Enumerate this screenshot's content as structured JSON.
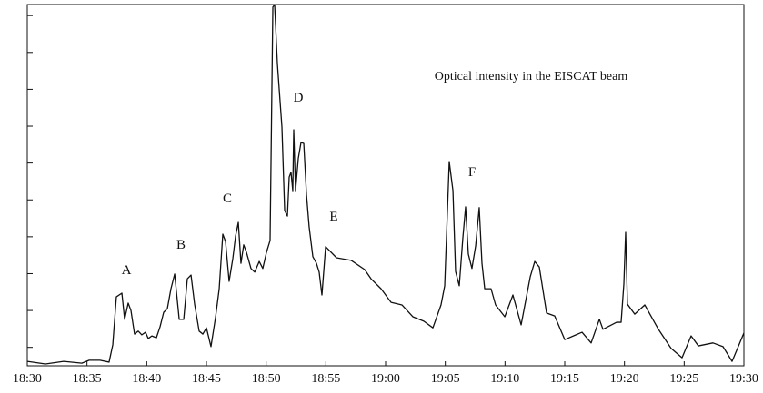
{
  "chart_data": {
    "type": "line",
    "title": "Optical intensity in the EISCAT beam",
    "annotations": [
      "A",
      "B",
      "C",
      "D",
      "E",
      "F"
    ],
    "xlim": [
      0,
      60
    ],
    "xticks": [
      {
        "value": 0,
        "label": "18:30"
      },
      {
        "value": 5,
        "label": "18:35"
      },
      {
        "value": 10,
        "label": "18:40"
      },
      {
        "value": 15,
        "label": "18:45"
      },
      {
        "value": 20,
        "label": "18:50"
      },
      {
        "value": 25,
        "label": "18:55"
      },
      {
        "value": 30,
        "label": "19:00"
      },
      {
        "value": 35,
        "label": "19:05"
      },
      {
        "value": 40,
        "label": "19:10"
      },
      {
        "value": 45,
        "label": "19:15"
      },
      {
        "value": 50,
        "label": "19:20"
      },
      {
        "value": 55,
        "label": "19:25"
      },
      {
        "value": 60,
        "label": "19:30"
      }
    ],
    "ylim": [
      0,
      9.8
    ],
    "yticks": [
      0.5,
      1.5,
      2.5,
      3.5,
      4.5,
      5.5,
      6.5,
      7.5,
      8.5,
      9.5
    ],
    "series": [
      {
        "color": "#111111",
        "x": [
          0,
          1.52,
          3.05,
          4.57,
          5.18,
          6.09,
          6.85,
          7.16,
          7.46,
          7.92,
          8.15,
          8.45,
          8.68,
          8.98,
          9.29,
          9.59,
          9.9,
          10.13,
          10.43,
          10.81,
          11.12,
          11.42,
          11.73,
          12.03,
          12.34,
          12.72,
          13.1,
          13.4,
          13.71,
          14.01,
          14.39,
          14.7,
          15,
          15.38,
          15.76,
          16.07,
          16.37,
          16.6,
          16.9,
          17.21,
          17.44,
          17.67,
          17.89,
          18.12,
          18.35,
          18.73,
          19.04,
          19.42,
          19.72,
          20.03,
          20.33,
          20.56,
          20.71,
          20.94,
          21.32,
          21.55,
          21.78,
          21.93,
          22.08,
          22.23,
          22.31,
          22.46,
          22.69,
          22.92,
          23.15,
          23.38,
          23.6,
          23.91,
          24.21,
          24.44,
          24.67,
          24.98,
          25.89,
          27.11,
          28.25,
          28.78,
          29.62,
          30.46,
          31.37,
          32.28,
          33.2,
          33.96,
          34.64,
          34.95,
          35.18,
          35.33,
          35.64,
          35.86,
          36.17,
          36.47,
          36.7,
          36.93,
          37.23,
          37.54,
          37.84,
          38.07,
          38.3,
          38.83,
          39.21,
          39.98,
          40.66,
          41.35,
          42.11,
          42.49,
          42.87,
          43.48,
          44.16,
          45,
          46.45,
          47.21,
          47.9,
          48.2,
          49.34,
          49.72,
          49.95,
          50.1,
          50.25,
          50.86,
          51.7,
          52.84,
          53.91,
          54.82,
          55.58,
          56.19,
          57.41,
          58.25,
          59.01,
          60
        ],
        "values": [
          0.12,
          0.05,
          0.12,
          0.07,
          0.15,
          0.15,
          0.1,
          0.57,
          1.87,
          1.97,
          1.26,
          1.7,
          1.5,
          0.86,
          0.94,
          0.84,
          0.91,
          0.74,
          0.81,
          0.76,
          1.06,
          1.45,
          1.55,
          2.09,
          2.49,
          1.26,
          1.26,
          2.36,
          2.46,
          1.67,
          0.94,
          0.86,
          1.03,
          0.52,
          1.31,
          2.09,
          3.57,
          3.37,
          2.29,
          2.91,
          3.52,
          3.89,
          2.78,
          3.28,
          3.08,
          2.64,
          2.54,
          2.83,
          2.64,
          3.08,
          3.4,
          9.73,
          9.8,
          8.2,
          6.48,
          4.21,
          4.06,
          5.12,
          5.25,
          4.75,
          6.4,
          4.75,
          5.62,
          6.06,
          6.03,
          4.63,
          3.77,
          2.96,
          2.78,
          2.54,
          1.92,
          3.23,
          2.93,
          2.86,
          2.61,
          2.36,
          2.09,
          1.72,
          1.65,
          1.33,
          1.21,
          1.03,
          1.65,
          2.17,
          4.21,
          5.54,
          4.75,
          2.56,
          2.17,
          3.47,
          4.31,
          3.03,
          2.64,
          3.25,
          4.29,
          2.78,
          2.09,
          2.09,
          1.65,
          1.33,
          1.92,
          1.11,
          2.41,
          2.83,
          2.68,
          1.43,
          1.35,
          0.71,
          0.91,
          0.62,
          1.26,
          0.99,
          1.18,
          1.18,
          2.22,
          3.62,
          1.67,
          1.4,
          1.65,
          0.99,
          0.47,
          0.22,
          0.81,
          0.54,
          0.62,
          0.52,
          0.12,
          0.89
        ]
      }
    ]
  }
}
